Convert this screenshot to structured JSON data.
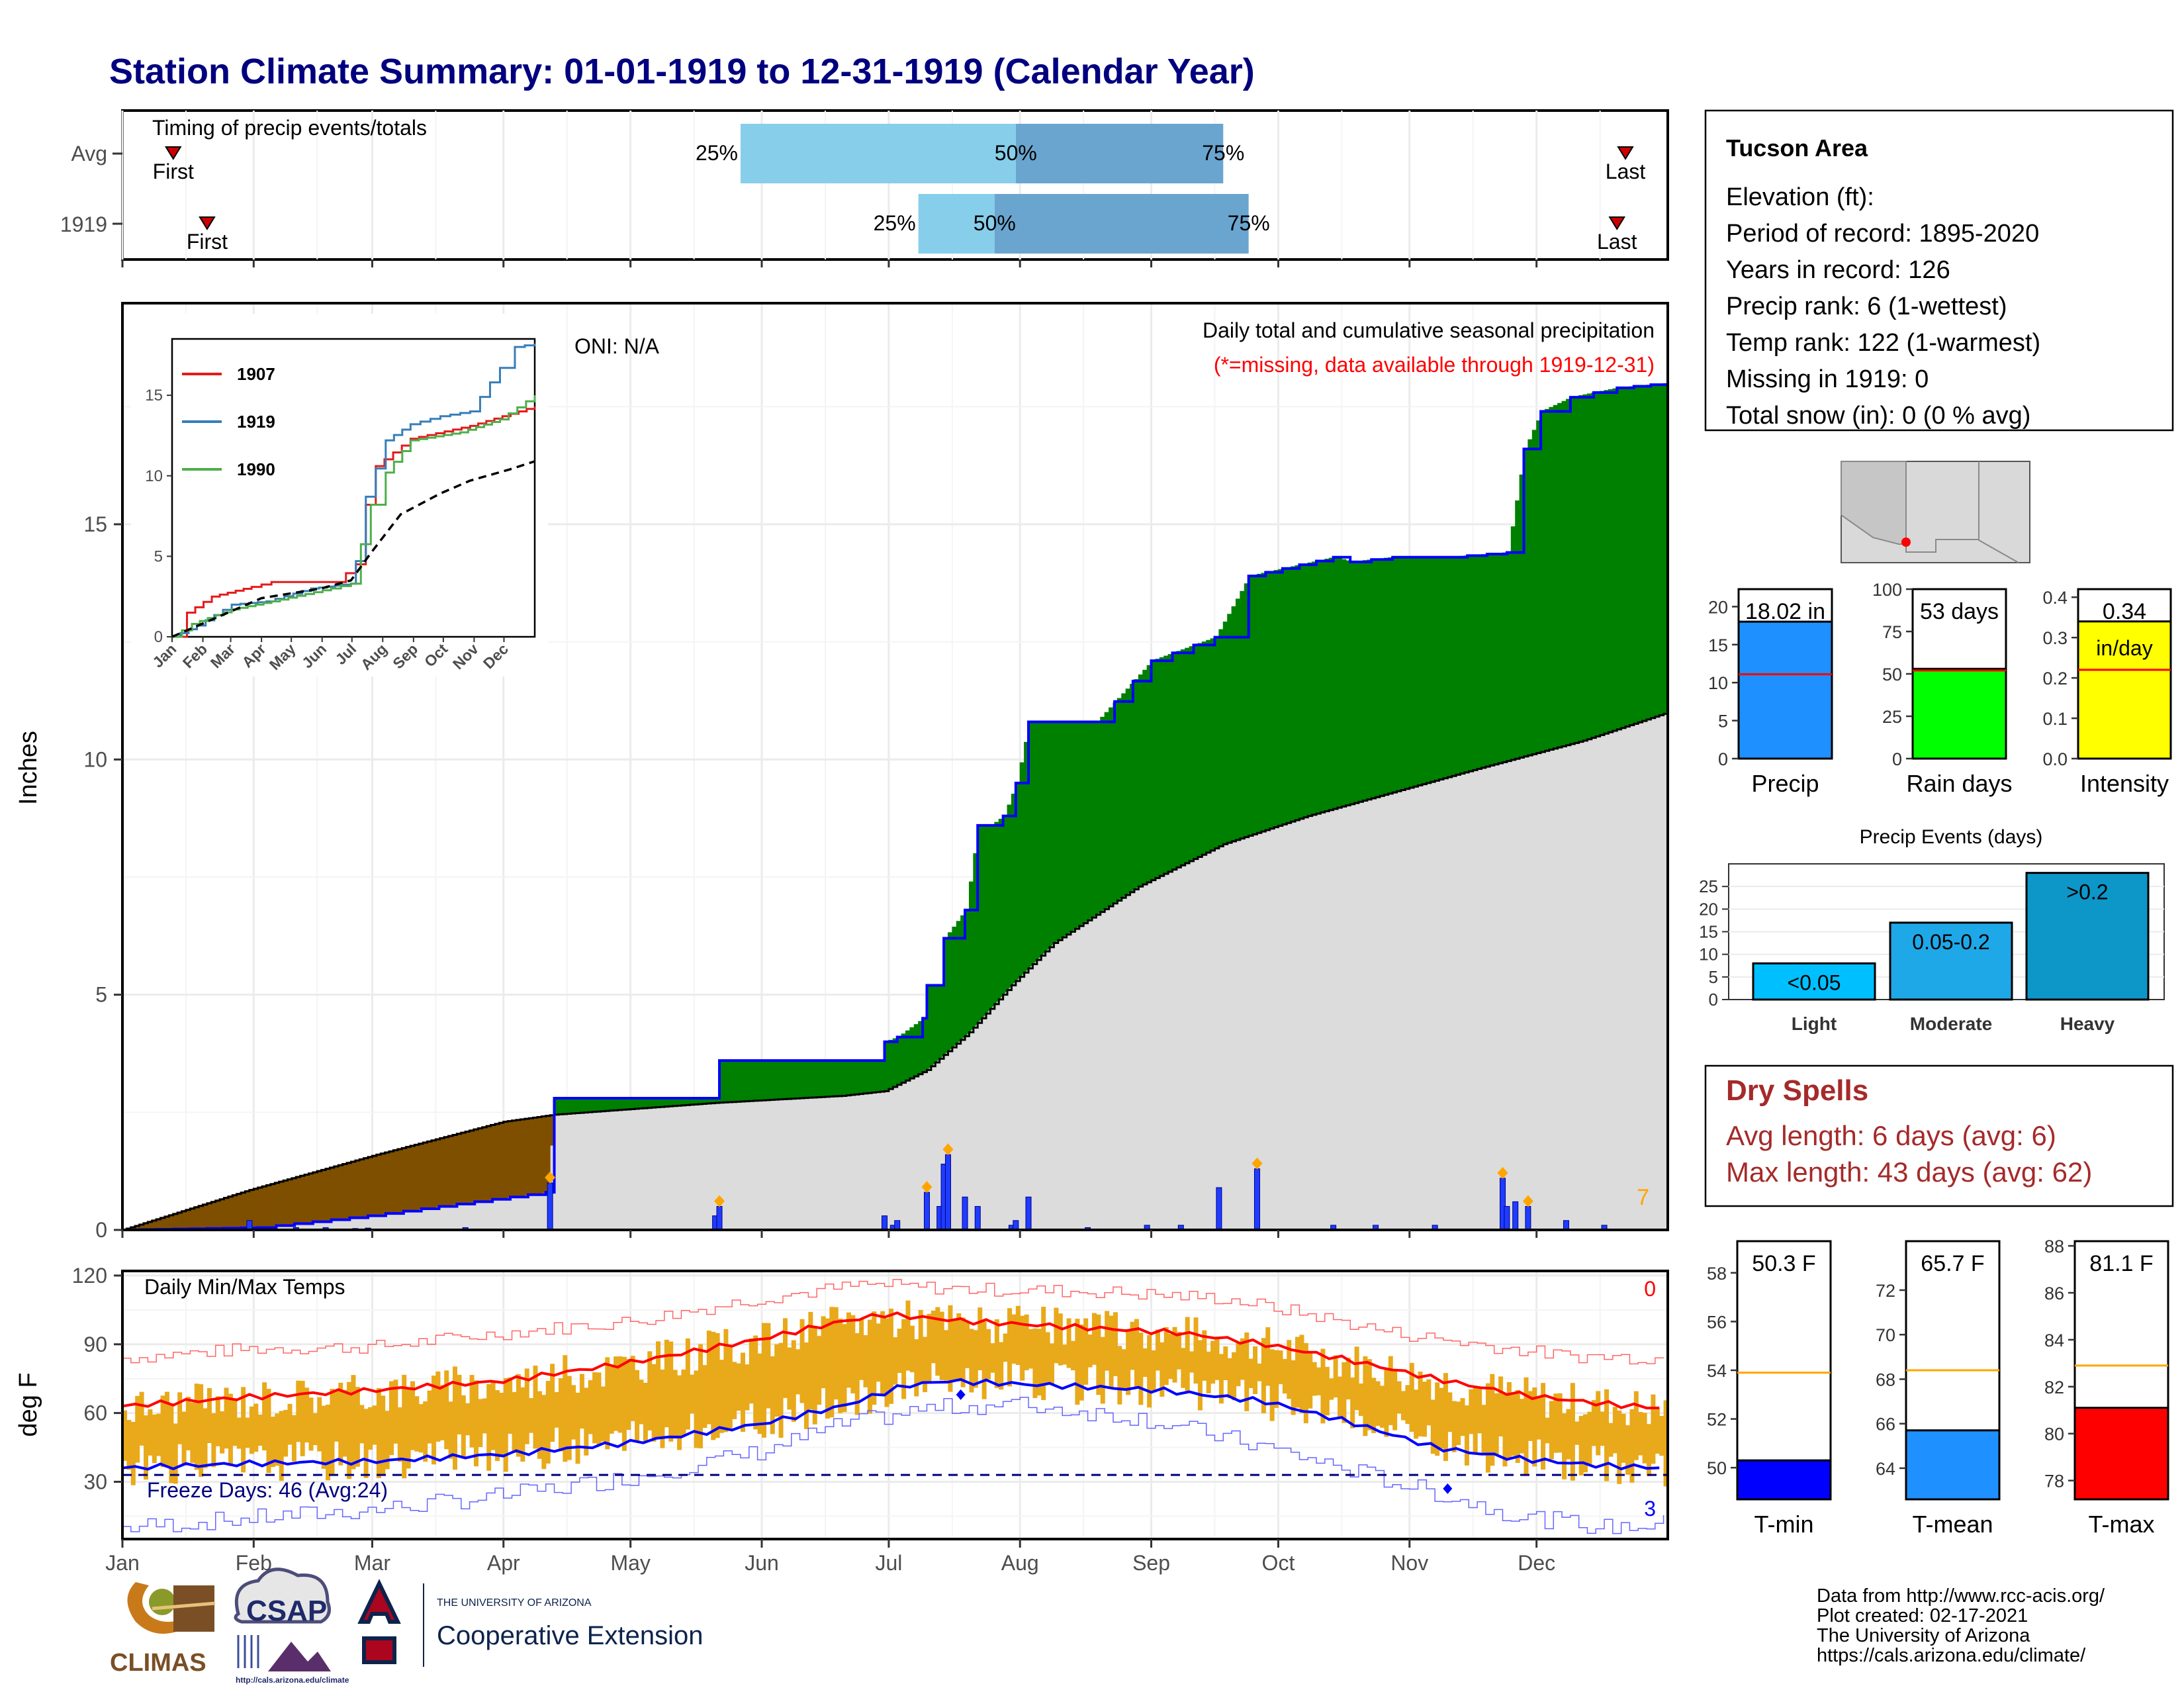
{
  "title": "Station Climate Summary: 01-01-1919 to 12-31-1919 (Calendar Year)",
  "colors": {
    "title": "#00007f",
    "q_light": "#87ceeb",
    "q_dark": "#6aa5cf",
    "green": "#008000",
    "brown": "#7f4f00",
    "gray_fill": "#dcdcdc",
    "precip_bar": "#1f3cff",
    "diamond": "#ffa500",
    "grid": "#ebebeb",
    "tmax": "#ff0000",
    "tmin": "#0000ff",
    "range": "#e8a91a",
    "dry": "#a52a2a"
  },
  "timing": {
    "label": "Timing of precip events/totals",
    "rows": [
      {
        "name": "Avg",
        "first_doy": 12,
        "q25_doy": 146,
        "q50_doy": 211,
        "q75_doy": 260,
        "last_doy": 355,
        "first_label": "First",
        "last_label": "Last",
        "q25_label": "25%",
        "q50_label": "50%",
        "q75_label": "75%"
      },
      {
        "name": "1919",
        "first_doy": 20,
        "q25_doy": 188,
        "q50_doy": 206,
        "q75_doy": 266,
        "last_doy": 353,
        "first_label": "First",
        "last_label": "Last",
        "q25_label": "25%",
        "q50_label": "50%",
        "q75_label": "75%"
      }
    ]
  },
  "precip": {
    "ylabel": "Inches",
    "oni": "ONI: N/A",
    "caption1": "Daily total and cumulative seasonal precipitation",
    "caption2": "(*=missing, data available through 1919-12-31)",
    "count_label": "7",
    "ylim": [
      0,
      19.7
    ],
    "yticks": [
      {
        "v": 0,
        "t": "0"
      },
      {
        "v": 5,
        "t": "5"
      },
      {
        "v": 10,
        "t": "10"
      },
      {
        "v": 15,
        "t": "15"
      }
    ]
  },
  "inset": {
    "yticks": [
      {
        "v": 0,
        "t": "0"
      },
      {
        "v": 5,
        "t": "5"
      },
      {
        "v": 10,
        "t": "10"
      },
      {
        "v": 15,
        "t": "15"
      }
    ],
    "months": [
      "Jan",
      "Feb",
      "Mar",
      "Apr",
      "May",
      "Jun",
      "Jul",
      "Aug",
      "Sep",
      "Oct",
      "Nov",
      "Dec"
    ],
    "ylim": [
      0,
      18.5
    ],
    "legend": [
      {
        "name": "1907",
        "color": "#e41a1c"
      },
      {
        "name": "1919",
        "color": "#377eb8"
      },
      {
        "name": "1990",
        "color": "#4daf4a"
      }
    ],
    "series": [
      {
        "name": "1907",
        "color": "#e41a1c",
        "points": [
          [
            0,
            0
          ],
          [
            15,
            1.5
          ],
          [
            40,
            2.5
          ],
          [
            80,
            3.1
          ],
          [
            100,
            3.4
          ],
          [
            165,
            3.4
          ],
          [
            185,
            4.5
          ],
          [
            195,
            8.2
          ],
          [
            205,
            10.6
          ],
          [
            240,
            12.3
          ],
          [
            300,
            13.1
          ],
          [
            365,
            14.3
          ]
        ]
      },
      {
        "name": "1919",
        "color": "#377eb8",
        "points": [
          [
            0,
            0
          ],
          [
            25,
            0.7
          ],
          [
            60,
            2.0
          ],
          [
            95,
            2.2
          ],
          [
            140,
            3.0
          ],
          [
            180,
            3.3
          ],
          [
            185,
            4.7
          ],
          [
            195,
            8.7
          ],
          [
            215,
            12.2
          ],
          [
            240,
            13.2
          ],
          [
            270,
            13.7
          ],
          [
            300,
            14.0
          ],
          [
            330,
            16.7
          ],
          [
            345,
            18.0
          ],
          [
            365,
            18.2
          ]
        ]
      },
      {
        "name": "1990",
        "color": "#4daf4a",
        "points": [
          [
            0,
            0
          ],
          [
            20,
            0.8
          ],
          [
            60,
            1.7
          ],
          [
            100,
            2.2
          ],
          [
            160,
            3.0
          ],
          [
            180,
            3.3
          ],
          [
            200,
            8.2
          ],
          [
            215,
            10.2
          ],
          [
            240,
            12.2
          ],
          [
            290,
            12.7
          ],
          [
            330,
            13.5
          ],
          [
            365,
            15.0
          ]
        ]
      },
      {
        "name": "avg",
        "color": "#000000",
        "dash": true,
        "points": [
          [
            0,
            0
          ],
          [
            90,
            2.4
          ],
          [
            150,
            3.0
          ],
          [
            180,
            3.5
          ],
          [
            200,
            5.2
          ],
          [
            230,
            7.6
          ],
          [
            270,
            8.9
          ],
          [
            300,
            9.7
          ],
          [
            340,
            10.4
          ],
          [
            365,
            10.9
          ]
        ]
      }
    ]
  },
  "chart_data": [
    {
      "type": "area",
      "title": "Daily total and cumulative seasonal precipitation",
      "ylabel": "Inches",
      "ylim": [
        0,
        19.7
      ],
      "xlim": [
        0,
        365
      ],
      "cumulative_1919": [
        [
          0,
          0
        ],
        [
          32,
          0.05
        ],
        [
          58,
          0.3
        ],
        [
          100,
          0.8
        ],
        [
          102,
          2.8
        ],
        [
          140,
          2.8
        ],
        [
          141,
          3.6
        ],
        [
          179,
          3.6
        ],
        [
          180,
          4.0
        ],
        [
          183,
          4.1
        ],
        [
          189,
          4.5
        ],
        [
          190,
          5.2
        ],
        [
          193,
          5.2
        ],
        [
          194,
          6.2
        ],
        [
          199,
          6.8
        ],
        [
          202,
          8.6
        ],
        [
          205,
          8.6
        ],
        [
          208,
          8.8
        ],
        [
          211,
          9.5
        ],
        [
          214,
          10.8
        ],
        [
          230,
          10.8
        ],
        [
          243,
          12.1
        ],
        [
          258,
          12.6
        ],
        [
          266,
          13.9
        ],
        [
          286,
          14.3
        ],
        [
          290,
          14.2
        ],
        [
          300,
          14.3
        ],
        [
          313,
          14.3
        ],
        [
          327,
          14.4
        ],
        [
          331,
          16.6
        ],
        [
          335,
          17.4
        ],
        [
          342,
          17.7
        ],
        [
          353,
          17.9
        ],
        [
          365,
          18.0
        ]
      ],
      "avg_cumulative": [
        [
          0,
          0
        ],
        [
          30,
          0.85
        ],
        [
          60,
          1.6
        ],
        [
          90,
          2.3
        ],
        [
          102,
          2.45
        ],
        [
          140,
          2.7
        ],
        [
          170,
          2.85
        ],
        [
          180,
          2.95
        ],
        [
          190,
          3.4
        ],
        [
          200,
          4.2
        ],
        [
          210,
          5.2
        ],
        [
          220,
          6.1
        ],
        [
          240,
          7.3
        ],
        [
          260,
          8.2
        ],
        [
          280,
          8.8
        ],
        [
          300,
          9.3
        ],
        [
          320,
          9.8
        ],
        [
          345,
          10.4
        ],
        [
          365,
          11.0
        ]
      ],
      "daily_precip": [
        [
          30,
          0.2
        ],
        [
          41,
          0.05
        ],
        [
          48,
          0.05
        ],
        [
          55,
          0.03
        ],
        [
          58,
          0.04
        ],
        [
          73,
          0.02
        ],
        [
          81,
          0.05
        ],
        [
          96,
          0.02
        ],
        [
          101,
          1.0
        ],
        [
          140,
          0.3
        ],
        [
          141,
          0.5
        ],
        [
          180,
          0.3
        ],
        [
          182,
          0.1
        ],
        [
          183,
          0.2
        ],
        [
          190,
          0.8
        ],
        [
          193,
          0.5
        ],
        [
          194,
          1.4
        ],
        [
          195,
          1.6
        ],
        [
          199,
          0.7
        ],
        [
          202,
          0.5
        ],
        [
          210,
          0.1
        ],
        [
          211,
          0.2
        ],
        [
          214,
          0.7
        ],
        [
          228,
          0.05
        ],
        [
          242,
          0.1
        ],
        [
          250,
          0.1
        ],
        [
          259,
          0.9
        ],
        [
          268,
          1.3
        ],
        [
          286,
          0.1
        ],
        [
          296,
          0.1
        ],
        [
          310,
          0.1
        ],
        [
          326,
          1.1
        ],
        [
          327,
          0.5
        ],
        [
          329,
          0.6
        ],
        [
          332,
          0.5
        ],
        [
          341,
          0.2
        ],
        [
          350,
          0.1
        ]
      ],
      "diamonds_doy": [
        101,
        141,
        190,
        195,
        268,
        326,
        332
      ]
    },
    {
      "type": "bar",
      "title": "Precip",
      "categories": [
        "Precip"
      ],
      "values": [
        18.02
      ],
      "avg_line": 11.1,
      "ylim": [
        0,
        22.3
      ],
      "yticks": [
        "0",
        "5",
        "10",
        "15",
        "20"
      ],
      "label": "18.02 in",
      "color": "#1e90ff"
    },
    {
      "type": "bar",
      "title": "Rain days",
      "categories": [
        "Rain days"
      ],
      "values": [
        53
      ],
      "avg_line": 52,
      "ylim": [
        0,
        100
      ],
      "yticks": [
        "0",
        "25",
        "50",
        "75",
        "100"
      ],
      "label": "53 days",
      "color": "#00ff00"
    },
    {
      "type": "bar",
      "title": "Intensity",
      "categories": [
        "Intensity"
      ],
      "values": [
        0.34
      ],
      "avg_line": 0.22,
      "ylim": [
        0,
        0.42
      ],
      "yticks": [
        "0.0",
        "0.1",
        "0.2",
        "0.3",
        "0.4"
      ],
      "label": "0.34",
      "sublabel": "in/day",
      "color": "#ffff00"
    },
    {
      "type": "bar",
      "title": "Precip Events (days)",
      "categories": [
        "Light",
        "Moderate",
        "Heavy"
      ],
      "values": [
        8,
        17,
        28
      ],
      "bar_labels": [
        "<0.05",
        "0.05-0.2",
        ">0.2"
      ],
      "colors": [
        "#00bfff",
        "#1ea8e8",
        "#0d96c8"
      ],
      "ylim": [
        0,
        30
      ],
      "yticks": [
        "0",
        "5",
        "10",
        "15",
        "20",
        "25"
      ]
    },
    {
      "type": "bar",
      "title": "T-min",
      "categories": [
        "T-min"
      ],
      "values": [
        50.3
      ],
      "avg_line": 53.9,
      "ylim": [
        48.7,
        59.3
      ],
      "yticks": [
        "50",
        "52",
        "54",
        "56",
        "58"
      ],
      "label": "50.3 F",
      "color": "#0000ff"
    },
    {
      "type": "bar",
      "title": "T-mean",
      "categories": [
        "T-mean"
      ],
      "values": [
        65.7
      ],
      "avg_line": 68.4,
      "ylim": [
        62.6,
        74.2
      ],
      "yticks": [
        "64",
        "66",
        "68",
        "70",
        "72"
      ],
      "label": "65.7 F",
      "color": "#1e90ff"
    },
    {
      "type": "bar",
      "title": "T-max",
      "categories": [
        "T-max"
      ],
      "values": [
        81.1
      ],
      "avg_line": 82.9,
      "ylim": [
        77.2,
        88.2
      ],
      "yticks": [
        "78",
        "80",
        "82",
        "84",
        "86",
        "88"
      ],
      "label": "81.1 F",
      "color": "#ff0000"
    },
    {
      "type": "line",
      "title": "Daily Min/Max Temps",
      "ylabel": "deg F",
      "ylim": [
        5,
        122
      ],
      "yticks": [
        "30",
        "60",
        "90",
        "120"
      ],
      "avg_max": [
        [
          0,
          63
        ],
        [
          30,
          67
        ],
        [
          60,
          70
        ],
        [
          90,
          74
        ],
        [
          120,
          82
        ],
        [
          150,
          92
        ],
        [
          170,
          100
        ],
        [
          180,
          103
        ],
        [
          200,
          100
        ],
        [
          230,
          97
        ],
        [
          250,
          95
        ],
        [
          270,
          90
        ],
        [
          290,
          83
        ],
        [
          310,
          75
        ],
        [
          330,
          68
        ],
        [
          350,
          64
        ],
        [
          365,
          62
        ]
      ],
      "avg_min": [
        [
          0,
          36
        ],
        [
          30,
          38
        ],
        [
          60,
          39
        ],
        [
          90,
          42
        ],
        [
          120,
          47
        ],
        [
          150,
          55
        ],
        [
          170,
          63
        ],
        [
          185,
          72
        ],
        [
          195,
          74
        ],
        [
          220,
          72
        ],
        [
          245,
          70
        ],
        [
          270,
          65
        ],
        [
          290,
          56
        ],
        [
          310,
          45
        ],
        [
          330,
          40
        ],
        [
          350,
          37
        ],
        [
          365,
          36
        ]
      ],
      "record_max": [
        [
          0,
          84
        ],
        [
          30,
          88
        ],
        [
          60,
          89
        ],
        [
          90,
          95
        ],
        [
          120,
          100
        ],
        [
          150,
          110
        ],
        [
          175,
          116
        ],
        [
          200,
          114
        ],
        [
          230,
          113
        ],
        [
          260,
          110
        ],
        [
          280,
          103
        ],
        [
          300,
          95
        ],
        [
          320,
          90
        ],
        [
          340,
          85
        ],
        [
          365,
          84
        ]
      ],
      "record_min": [
        [
          0,
          10
        ],
        [
          30,
          14
        ],
        [
          60,
          18
        ],
        [
          90,
          24
        ],
        [
          120,
          32
        ],
        [
          150,
          43
        ],
        [
          170,
          55
        ],
        [
          190,
          62
        ],
        [
          210,
          64
        ],
        [
          240,
          58
        ],
        [
          270,
          45
        ],
        [
          290,
          35
        ],
        [
          310,
          25
        ],
        [
          330,
          15
        ],
        [
          350,
          10
        ],
        [
          365,
          12
        ]
      ],
      "freeze_line": 33,
      "freeze_text": "Freeze Days: 46 (Avg:24)",
      "label_top": "0",
      "label_bottom": "3",
      "points_doy": [
        [
          198,
          68
        ],
        [
          313,
          27
        ]
      ]
    }
  ],
  "station": {
    "name": "Tucson Area",
    "lines": [
      "Elevation (ft):",
      "Period of record: 1895-2020",
      "Years in record: 126",
      "Precip rank: 6 (1-wettest)",
      "Temp rank: 122 (1-warmest)",
      "Missing in 1919: 0",
      "Total snow (in): 0 (0 % avg)"
    ]
  },
  "dry_spells": {
    "title": "Dry Spells",
    "line1": "Avg length: 6 days (avg: 6)",
    "line2": "Max length: 43 days (avg: 62)"
  },
  "months": [
    "Jan",
    "Feb",
    "Mar",
    "Apr",
    "May",
    "Jun",
    "Jul",
    "Aug",
    "Sep",
    "Oct",
    "Nov",
    "Dec"
  ],
  "footer": {
    "line1": "Data from http://www.rcc-acis.org/",
    "line2": "Plot created: 02-17-2021",
    "line3": "The University of Arizona",
    "line4": "https://cals.arizona.edu/climate/"
  },
  "logos": {
    "climas": "CLIMAS",
    "csap": "CSAP",
    "csap_url": "http://cals.arizona.edu/climate",
    "ua_small": "THE UNIVERSITY OF ARIZONA",
    "ua_big": "Cooperative Extension"
  }
}
